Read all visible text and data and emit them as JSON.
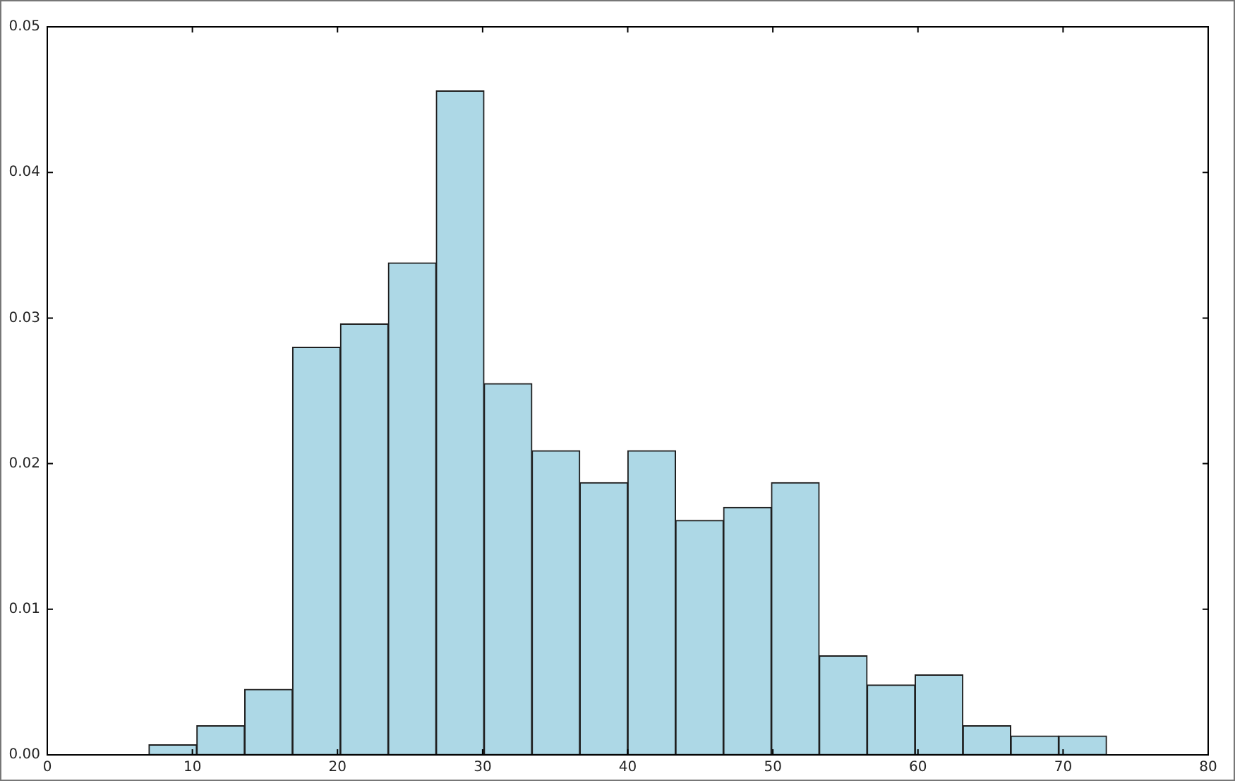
{
  "chart_data": {
    "type": "histogram",
    "bins": [
      7.0,
      10.3,
      13.6,
      16.9,
      20.2,
      23.5,
      26.8,
      30.1,
      33.4,
      36.7,
      40.0,
      43.3,
      46.6,
      49.9,
      53.2,
      56.5,
      59.8,
      63.1,
      66.4,
      69.7,
      73.0
    ],
    "values": [
      0.0007,
      0.002,
      0.0045,
      0.028,
      0.0296,
      0.0338,
      0.0456,
      0.0255,
      0.0209,
      0.0187,
      0.0209,
      0.0161,
      0.017,
      0.0187,
      0.0068,
      0.0048,
      0.0055,
      0.002,
      0.0013,
      0.0013
    ],
    "color": "#add8e6",
    "xlim": [
      0,
      80
    ],
    "ylim": [
      0,
      0.05
    ],
    "xticks": [
      0,
      10,
      20,
      30,
      40,
      50,
      60,
      70,
      80
    ],
    "yticks": [
      {
        "value": 0,
        "label": "0.00"
      },
      0.01,
      0.02,
      0.03,
      0.04,
      0.05
    ]
  }
}
